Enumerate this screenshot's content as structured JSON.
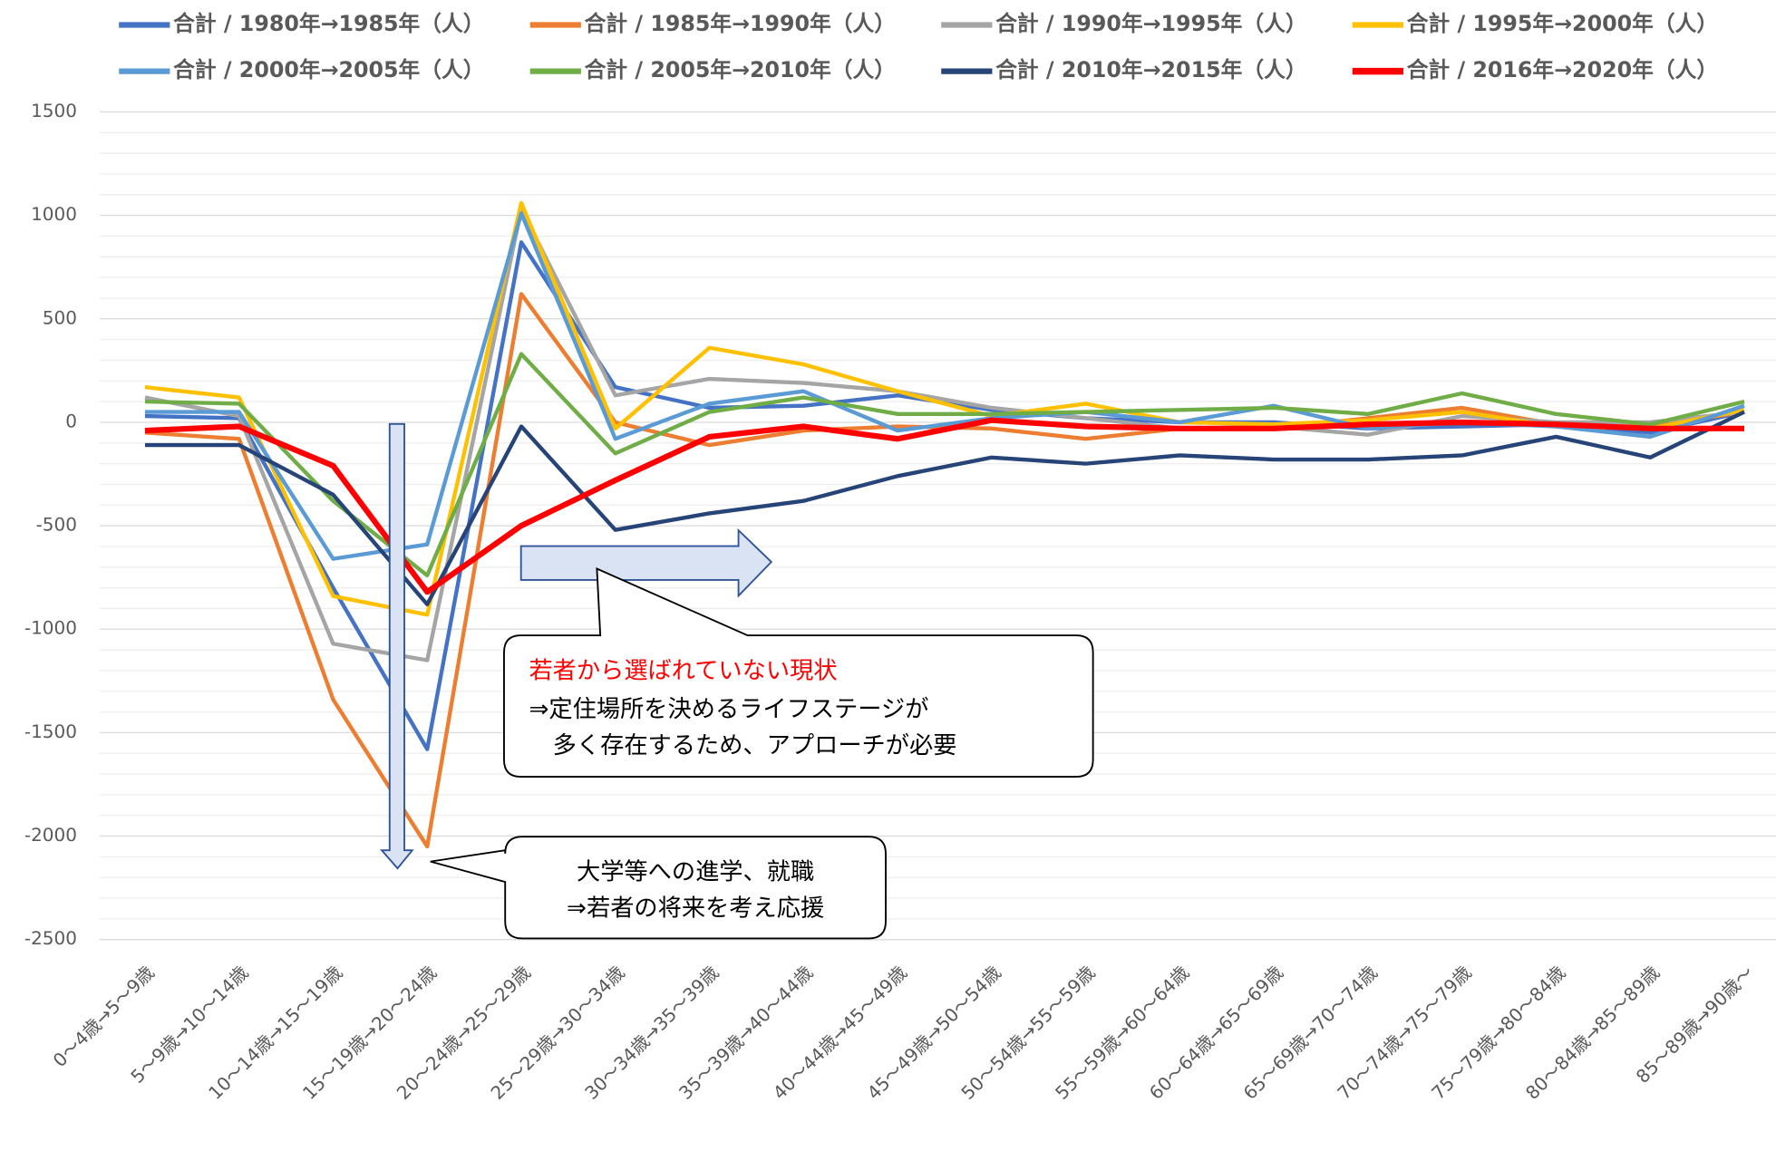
{
  "chart_data": {
    "type": "line",
    "categories": [
      "0～4歳→5～9歳",
      "5～9歳→10～14歳",
      "10～14歳→15～19歳",
      "15～19歳→20～24歳",
      "20～24歳→25～29歳",
      "25～29歳→30～34歳",
      "30～34歳→35～39歳",
      "35～39歳→40～44歳",
      "40～44歳→45～49歳",
      "45～49歳→50～54歳",
      "50～54歳→55～59歳",
      "55～59歳→60～64歳",
      "60～64歳→65～69歳",
      "65～69歳→70～74歳",
      "70～74歳→75～79歳",
      "75～79歳→80～84歳",
      "80～84歳→85～89歳",
      "85～89歳→90歳～"
    ],
    "series": [
      {
        "name": "合計 / 1980年→1985年（人）",
        "color": "#4472c4",
        "values": [
          30,
          20,
          -800,
          -1580,
          870,
          170,
          70,
          80,
          130,
          60,
          20,
          0,
          0,
          -30,
          -20,
          -10,
          -50,
          50
        ]
      },
      {
        "name": "合計 / 1985年→1990年（人）",
        "color": "#ed7d31",
        "values": [
          -50,
          -80,
          -1340,
          -2050,
          620,
          0,
          -110,
          -40,
          -20,
          -30,
          -80,
          -30,
          -30,
          20,
          70,
          -10,
          -20,
          50
        ]
      },
      {
        "name": "合計 / 1990年→1995年（人）",
        "color": "#a5a5a5",
        "values": [
          120,
          30,
          -1070,
          -1150,
          1030,
          130,
          210,
          190,
          150,
          70,
          20,
          -30,
          -20,
          -60,
          30,
          0,
          0,
          50
        ]
      },
      {
        "name": "合計 / 1995年→2000年（人）",
        "color": "#ffc000",
        "values": [
          170,
          120,
          -840,
          -930,
          1060,
          -30,
          360,
          280,
          150,
          30,
          90,
          0,
          -10,
          10,
          50,
          -20,
          -30,
          60
        ]
      },
      {
        "name": "合計 / 2000年→2005年（人）",
        "color": "#5b9bd5",
        "values": [
          50,
          50,
          -660,
          -590,
          1010,
          -80,
          90,
          150,
          -40,
          20,
          50,
          0,
          80,
          -30,
          0,
          -20,
          -70,
          80
        ]
      },
      {
        "name": "合計 / 2005年→2010年（人）",
        "color": "#70ad47",
        "values": [
          100,
          90,
          -380,
          -740,
          330,
          -150,
          50,
          120,
          40,
          40,
          50,
          60,
          70,
          40,
          140,
          40,
          -10,
          100
        ]
      },
      {
        "name": "合計 / 2010年→2015年（人）",
        "color": "#264478",
        "values": [
          -110,
          -110,
          -350,
          -880,
          -20,
          -520,
          -440,
          -380,
          -260,
          -170,
          -200,
          -160,
          -180,
          -180,
          -160,
          -70,
          -170,
          50
        ]
      },
      {
        "name": "合計 / 2016年→2020年（人）",
        "color": "#ff0000",
        "values": [
          -40,
          -20,
          -210,
          -820,
          -500,
          -280,
          -70,
          -20,
          -80,
          10,
          -20,
          -30,
          -30,
          -10,
          0,
          -10,
          -30,
          -30
        ]
      }
    ],
    "ylim": [
      -2500,
      1500
    ],
    "yticks": [
      -2500,
      -2000,
      -1500,
      -1000,
      -500,
      0,
      500,
      1000,
      1500
    ],
    "grid": true,
    "legend": "top",
    "annotations": [
      [
        "若者から選ばれていない現状",
        "⇒定住場所を決めるライフステージが",
        "　多く存在するため、アプローチが必要"
      ],
      [
        "大学等への進学、就職",
        "⇒若者の将来を考え応援"
      ]
    ]
  }
}
